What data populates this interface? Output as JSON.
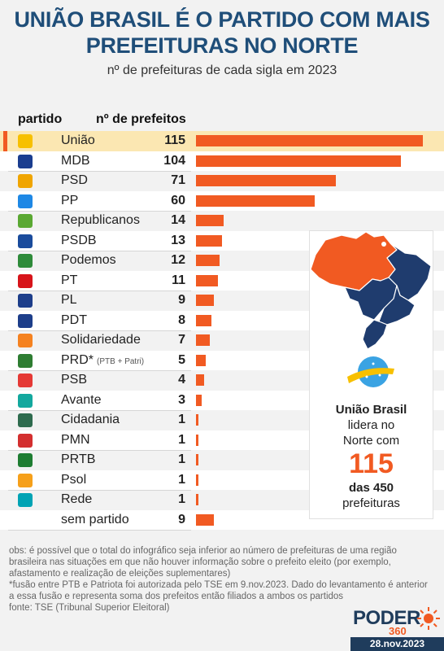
{
  "header": {
    "title_line1": "UNIÃO BRASIL É O PARTIDO COM MAIS",
    "title_line2": "PREFEITURAS NO NORTE",
    "subtitle": "nº de prefeituras de cada sigla em 2023"
  },
  "columns": {
    "party": "partido",
    "count": "nº de prefeitos"
  },
  "chart_data": {
    "type": "bar",
    "orientation": "horizontal",
    "title": "UNIÃO BRASIL É O PARTIDO COM MAIS PREFEITURAS NO NORTE",
    "subtitle": "nº de prefeituras de cada sigla em 2023",
    "categories": [
      "União",
      "MDB",
      "PSD",
      "PP",
      "Republicanos",
      "PSDB",
      "Podemos",
      "PT",
      "PL",
      "PDT",
      "Solidariedade",
      "PRD*",
      "PSB",
      "Avante",
      "Cidadania",
      "PMN",
      "PRTB",
      "Psol",
      "Rede",
      "sem partido"
    ],
    "values": [
      115,
      104,
      71,
      60,
      14,
      13,
      12,
      11,
      9,
      8,
      7,
      5,
      4,
      3,
      1,
      1,
      1,
      1,
      1,
      9
    ],
    "category_notes": {
      "PRD*": "(PTB + Patri)"
    },
    "highlight": "União",
    "bar_color": "#f15a22",
    "xlim": [
      0,
      115
    ]
  },
  "logos": [
    {
      "icon": "uniao-logo-icon",
      "color": "#f7c000"
    },
    {
      "icon": "mdb-logo-icon",
      "color": "#1a3d8f"
    },
    {
      "icon": "psd-logo-icon",
      "color": "#f0a500"
    },
    {
      "icon": "pp-logo-icon",
      "color": "#1e88e5"
    },
    {
      "icon": "republicanos-logo-icon",
      "color": "#5aa832"
    },
    {
      "icon": "psdb-logo-icon",
      "color": "#1a4b9c"
    },
    {
      "icon": "podemos-logo-icon",
      "color": "#2e8b3a"
    },
    {
      "icon": "pt-logo-icon",
      "color": "#d7141a"
    },
    {
      "icon": "pl-logo-icon",
      "color": "#1d3e8a"
    },
    {
      "icon": "pdt-logo-icon",
      "color": "#1d3e8a"
    },
    {
      "icon": "solidariedade-logo-icon",
      "color": "#f58220"
    },
    {
      "icon": "prd-logo-icon",
      "color": "#2e7d32"
    },
    {
      "icon": "psb-logo-icon",
      "color": "#e53935"
    },
    {
      "icon": "avante-logo-icon",
      "color": "#13a89e"
    },
    {
      "icon": "cidadania-logo-icon",
      "color": "#2e6b4e"
    },
    {
      "icon": "pmn-logo-icon",
      "color": "#d32f2f"
    },
    {
      "icon": "prtb-logo-icon",
      "color": "#1e7d32"
    },
    {
      "icon": "psol-logo-icon",
      "color": "#f6a01a"
    },
    {
      "icon": "rede-logo-icon",
      "color": "#00a3b4"
    },
    {
      "icon": "",
      "color": ""
    }
  ],
  "sidebar": {
    "line1": "União Brasil",
    "line2": "lidera no",
    "line3": "Norte com",
    "big_number": "115",
    "line4": "das 450",
    "line5": "prefeituras",
    "map_colors": {
      "highlight": "#f15a22",
      "other": "#1f3c6e"
    }
  },
  "footnotes": {
    "obs": "obs: é possível que o total do infográfico seja inferior ao número de prefeituras de uma região brasileira nas situações em que não houver informação sobre o prefeito eleito (por exemplo, afastamento e realização de eleições suplementares)",
    "fusion": "*fusão entre PTB e Patriota foi autorizada pelo TSE em 9.nov.2023. Dado do levantamento é anterior a essa fusão e representa soma dos prefeitos então filiados a ambos os partidos",
    "source": "fonte: TSE (Tribunal Superior Eleitoral)"
  },
  "brand": {
    "name": "PODER",
    "sub": "360",
    "date": "28.nov.2023"
  }
}
